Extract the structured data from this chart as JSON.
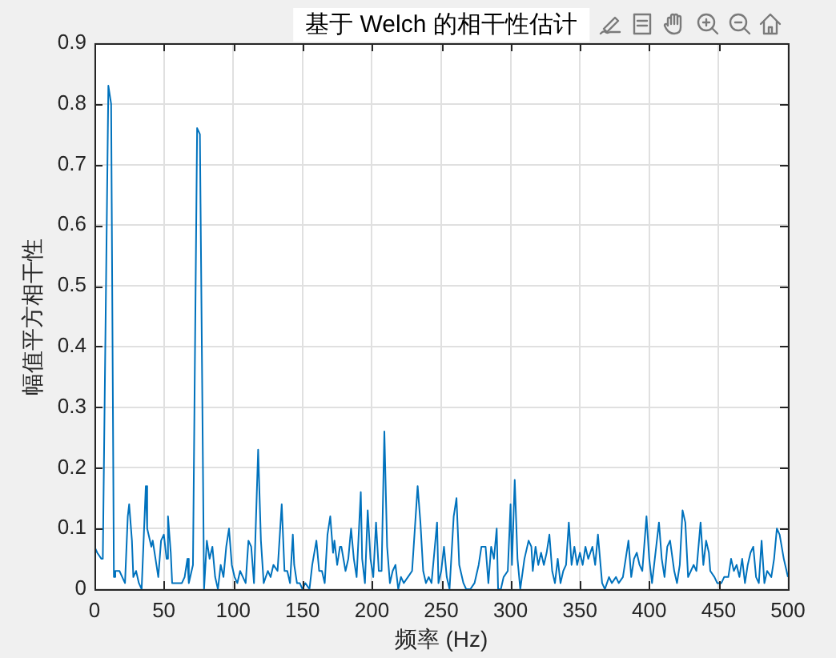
{
  "chart_data": {
    "type": "line",
    "title": "基于 Welch 的相干性估计",
    "xlabel": "频率 (Hz)",
    "ylabel": "幅值平方相干性",
    "x": [
      0,
      2,
      5,
      6,
      10,
      12,
      14,
      15,
      18,
      20,
      22,
      24,
      25,
      27,
      28,
      30,
      32,
      34,
      37,
      38,
      41,
      42,
      44,
      46,
      48,
      50,
      52,
      53,
      55,
      56,
      59,
      61,
      63,
      65,
      67,
      68,
      71,
      74,
      76,
      79,
      81,
      83,
      85,
      87,
      89,
      91,
      93,
      95,
      97,
      99,
      101,
      103,
      105,
      107,
      109,
      111,
      113,
      115,
      118,
      120,
      122,
      125,
      127,
      129,
      132,
      135,
      137,
      139,
      141,
      143,
      144,
      146,
      148,
      150,
      152,
      155,
      157,
      160,
      162,
      164,
      166,
      168,
      170,
      172,
      173,
      175,
      177,
      178,
      181,
      183,
      185,
      187,
      189,
      192,
      193,
      195,
      197,
      199,
      201,
      203,
      205,
      207,
      209,
      211,
      213,
      215,
      217,
      219,
      221,
      223,
      226,
      229,
      233,
      235,
      237,
      239,
      241,
      243,
      245,
      247,
      248,
      250,
      252,
      254,
      256,
      259,
      261,
      263,
      266,
      268,
      271,
      274,
      277,
      279,
      282,
      284,
      286,
      288,
      290,
      291,
      293,
      295,
      298,
      300,
      301,
      303,
      305,
      307,
      310,
      313,
      315,
      316,
      318,
      320,
      322,
      324,
      326,
      328,
      330,
      332,
      334,
      336,
      338,
      340,
      342,
      344,
      346,
      348,
      350,
      352,
      354,
      356,
      359,
      361,
      363,
      366,
      368,
      371,
      373,
      376,
      378,
      381,
      383,
      385,
      387,
      389,
      391,
      393,
      395,
      396,
      398,
      400,
      402,
      405,
      407,
      409,
      411,
      413,
      415,
      418,
      420,
      422,
      424,
      426,
      428,
      430,
      432,
      434,
      437,
      439,
      441,
      443,
      444,
      447,
      449,
      452,
      454,
      457,
      459,
      461,
      463,
      465,
      467,
      469,
      471,
      473,
      475,
      477,
      479,
      481,
      483,
      485,
      488,
      490,
      492,
      494,
      497,
      500
    ],
    "values": [
      0.07,
      0.06,
      0.05,
      0.05,
      0.83,
      0.8,
      0.02,
      0.03,
      0.03,
      0.02,
      0.01,
      0.12,
      0.14,
      0.08,
      0.02,
      0.03,
      0.01,
      0,
      0.17,
      0.1,
      0.07,
      0.08,
      0.05,
      0.02,
      0.08,
      0.09,
      0.05,
      0.12,
      0.06,
      0.01,
      0.01,
      0.01,
      0.01,
      0.02,
      0.05,
      0.01,
      0.04,
      0.76,
      0.75,
      0,
      0.08,
      0.05,
      0.07,
      0.02,
      0,
      0.04,
      0.02,
      0.07,
      0.1,
      0.04,
      0.02,
      0.01,
      0.03,
      0.02,
      0.01,
      0.08,
      0.07,
      0.01,
      0.23,
      0.08,
      0.01,
      0.03,
      0.02,
      0.04,
      0.03,
      0.14,
      0.03,
      0.03,
      0.01,
      0.09,
      0.04,
      0.01,
      0.01,
      0,
      0.01,
      0,
      0.04,
      0.08,
      0.03,
      0.03,
      0.01,
      0.09,
      0.12,
      0.06,
      0.08,
      0.04,
      0.07,
      0.07,
      0.03,
      0.05,
      0.1,
      0.05,
      0.02,
      0.16,
      0.05,
      0.01,
      0.13,
      0.05,
      0.02,
      0.11,
      0.03,
      0.03,
      0.26,
      0.07,
      0.01,
      0.03,
      0.04,
      0,
      0.02,
      0.01,
      0.02,
      0.03,
      0.17,
      0.11,
      0.03,
      0.01,
      0.02,
      0.01,
      0.06,
      0.11,
      0.01,
      0.03,
      0.07,
      0.02,
      0,
      0.12,
      0.15,
      0.04,
      0.01,
      0,
      0,
      0.01,
      0.04,
      0.07,
      0.07,
      0.01,
      0.07,
      0.05,
      0.1,
      0,
      0,
      0.02,
      0.03,
      0.14,
      0.04,
      0.18,
      0.05,
      0,
      0.05,
      0.08,
      0.07,
      0.03,
      0.07,
      0.04,
      0.06,
      0.04,
      0.06,
      0.09,
      0.03,
      0.01,
      0.05,
      0.01,
      0.03,
      0.04,
      0.11,
      0.04,
      0.07,
      0.04,
      0.06,
      0.04,
      0.07,
      0.05,
      0.07,
      0.04,
      0.09,
      0.01,
      0,
      0.02,
      0.01,
      0.02,
      0.01,
      0.02,
      0.05,
      0.08,
      0.02,
      0.05,
      0.06,
      0.04,
      0.03,
      0.03,
      0.12,
      0.05,
      0.01,
      0.07,
      0.11,
      0.05,
      0.02,
      0.07,
      0.08,
      0.03,
      0.01,
      0.04,
      0.13,
      0.11,
      0.02,
      0.03,
      0.04,
      0.03,
      0.11,
      0.04,
      0.08,
      0.06,
      0.03,
      0.02,
      0.01,
      0.01,
      0.02,
      0.02,
      0.05,
      0.03,
      0.04,
      0.02,
      0.05,
      0.01,
      0.04,
      0.06,
      0.07,
      0.02,
      0.01,
      0.08,
      0.01,
      0.03,
      0.02,
      0.05,
      0.1,
      0.09,
      0.05,
      0.02
    ],
    "color": "#0072bd",
    "xlim": [
      0,
      500
    ],
    "ylim": [
      0,
      0.9
    ],
    "xticks": [
      0,
      50,
      100,
      150,
      200,
      250,
      300,
      350,
      400,
      450,
      500
    ],
    "yticks": [
      0,
      0.1,
      0.2,
      0.3,
      0.4,
      0.5,
      0.6,
      0.7,
      0.8,
      0.9
    ],
    "grid": true
  }
}
